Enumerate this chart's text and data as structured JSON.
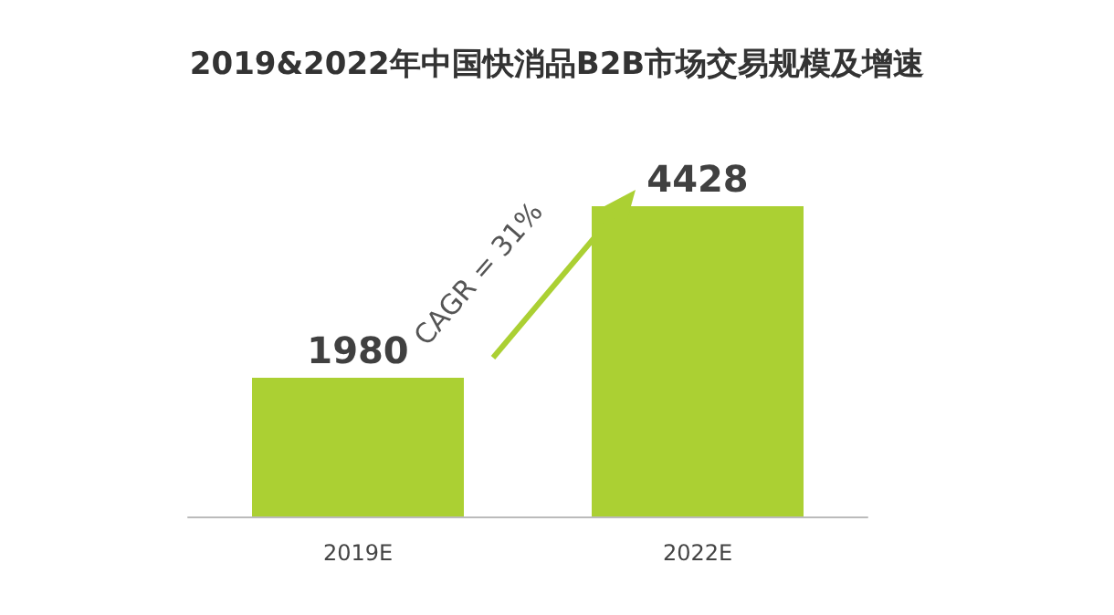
{
  "chart_data": {
    "type": "bar",
    "title": "2019&2022年中国快消品B2B市场交易规模及增速",
    "categories": [
      "2019E",
      "2022E"
    ],
    "values": [
      1980,
      4428
    ],
    "color": "#abd033",
    "data_labels": true,
    "annotations": [
      "CAGR = 31%"
    ]
  }
}
